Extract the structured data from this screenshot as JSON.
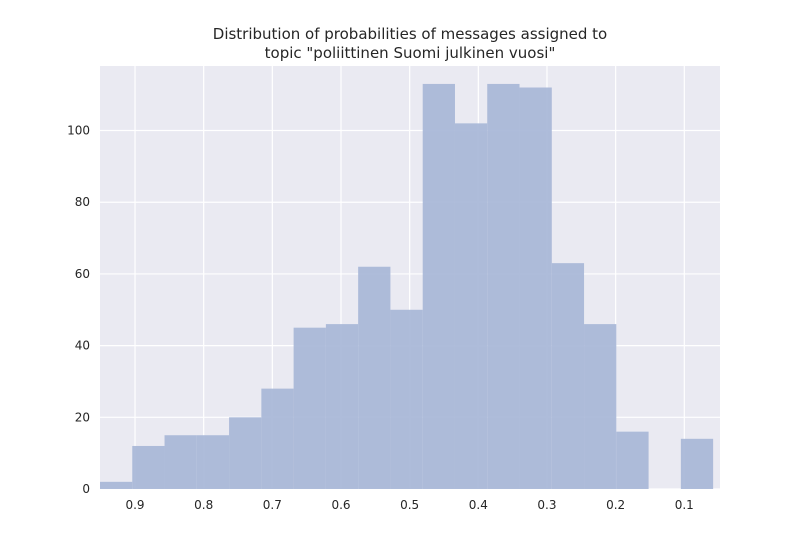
{
  "chart_data": {
    "type": "bar",
    "title_lines": [
      "Distribution of probabilities of messages assigned to",
      "topic \"poliittinen Suomi julkinen vuosi\""
    ],
    "xlabel": "",
    "ylabel": "",
    "x_axis_reversed": true,
    "xlim": [
      0.951,
      0.048
    ],
    "ylim": [
      0,
      118
    ],
    "x_ticks": [
      0.9,
      0.8,
      0.7,
      0.6,
      0.5,
      0.4,
      0.3,
      0.2,
      0.1
    ],
    "x_tick_labels": [
      "0.9",
      "0.8",
      "0.7",
      "0.6",
      "0.5",
      "0.4",
      "0.3",
      "0.2",
      "0.1"
    ],
    "y_ticks": [
      0,
      20,
      40,
      60,
      80,
      100
    ],
    "y_tick_labels": [
      "0",
      "20",
      "40",
      "60",
      "80",
      "100"
    ],
    "grid": true,
    "bin_edges": [
      0.951,
      0.904,
      0.857,
      0.81,
      0.763,
      0.716,
      0.669,
      0.622,
      0.575,
      0.528,
      0.481,
      0.434,
      0.387,
      0.34,
      0.293,
      0.246,
      0.199,
      0.152,
      0.105,
      0.058
    ],
    "counts": [
      2,
      12,
      15,
      15,
      20,
      28,
      45,
      46,
      62,
      50,
      113,
      102,
      113,
      112,
      63,
      46,
      16,
      0,
      14
    ],
    "colors": {
      "bar": "#a7b6d7",
      "plot_background": "#eaeaf2",
      "grid": "#ffffff",
      "text": "#262626"
    }
  }
}
